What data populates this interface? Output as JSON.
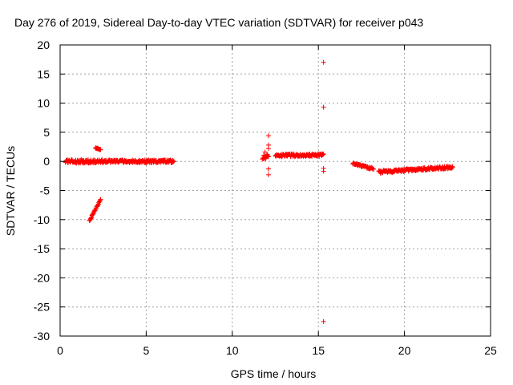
{
  "chart_data": {
    "type": "scatter",
    "title": "Day 276 of 2019, Sidereal Day-to-day VTEC variation (SDTVAR) for receiver p043",
    "xlabel": "GPS time / hours",
    "ylabel": "SDTVAR / TECUs",
    "xlim": [
      0,
      25
    ],
    "ylim": [
      -30,
      20
    ],
    "xticks": [
      0,
      5,
      10,
      15,
      20,
      25
    ],
    "yticks": [
      -30,
      -25,
      -20,
      -15,
      -10,
      -5,
      0,
      5,
      10,
      15,
      20
    ],
    "grid": true,
    "marker": "+",
    "color": "#ff0000",
    "series": [
      {
        "name": "SDTVAR",
        "segments": [
          {
            "x_start": 0.3,
            "x_end": 2.6,
            "y_start": 0.0,
            "y_end": 0.0,
            "noise": 0.6
          },
          {
            "x_start": 2.6,
            "x_end": 6.6,
            "y_start": 0.0,
            "y_end": 0.0,
            "noise": 0.5
          },
          {
            "x_start": 2.05,
            "x_end": 2.35,
            "y_start": 2.3,
            "y_end": 2.0,
            "noise": 0.15
          },
          {
            "x_start": 1.7,
            "x_end": 2.35,
            "y_start": -10.2,
            "y_end": -6.6,
            "noise": 0.25
          },
          {
            "x_start": 11.75,
            "x_end": 12.1,
            "y_start": 0.7,
            "y_end": 0.9,
            "noise": 0.8
          },
          {
            "x_start": 12.5,
            "x_end": 15.3,
            "y_start": 1.0,
            "y_end": 1.1,
            "noise": 0.45
          },
          {
            "x_start": 17.0,
            "x_end": 18.2,
            "y_start": -0.4,
            "y_end": -1.3,
            "noise": 0.35
          },
          {
            "x_start": 18.5,
            "x_end": 22.8,
            "y_start": -1.8,
            "y_end": -1.0,
            "noise": 0.45
          }
        ],
        "outliers": [
          {
            "x": 15.3,
            "y": 17.0
          },
          {
            "x": 15.3,
            "y": 9.3
          },
          {
            "x": 15.3,
            "y": -1.2
          },
          {
            "x": 15.3,
            "y": -1.7
          },
          {
            "x": 15.3,
            "y": -27.5
          },
          {
            "x": 12.1,
            "y": 4.4
          },
          {
            "x": 12.1,
            "y": 2.8
          },
          {
            "x": 12.1,
            "y": 2.2
          },
          {
            "x": 12.1,
            "y": -1.3
          },
          {
            "x": 12.1,
            "y": -2.3
          },
          {
            "x": 11.9,
            "y": 1.6
          },
          {
            "x": 2.15,
            "y": 2.3
          }
        ]
      }
    ]
  }
}
